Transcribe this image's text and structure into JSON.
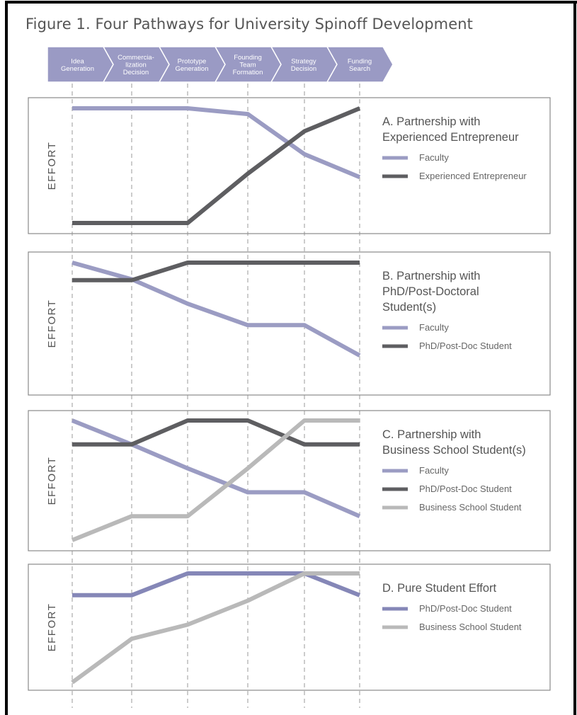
{
  "figure_title": "Figure 1. Four Pathways for University Spinoff Development",
  "colors": {
    "faculty": "#9b9cc3",
    "phd_dark": "#5e5e61",
    "entrepreneur_dark": "#5e5e61",
    "business_light": "#b9b9b9",
    "phd_in_d": "#8587b7",
    "stage_arrow_fill": "#9a9ac4",
    "panel_border": "#8a8a8a",
    "grid_dash": "#9a9a9a",
    "outer_border": "#000000"
  },
  "stages": [
    {
      "lines": [
        "Idea",
        "Generation"
      ]
    },
    {
      "lines": [
        "Commercia-",
        "lization",
        "Decision"
      ]
    },
    {
      "lines": [
        "Prototype",
        "Generation"
      ]
    },
    {
      "lines": [
        "Founding",
        "Team",
        "Formation"
      ]
    },
    {
      "lines": [
        "Strategy",
        "Decision"
      ]
    },
    {
      "lines": [
        "Funding",
        "Search"
      ]
    }
  ],
  "chart_data": [
    {
      "type": "line",
      "title_lines": [
        "A. Partnership with",
        "Experienced Entrepreneur"
      ],
      "ylabel": "EFFORT",
      "categories": [
        "Idea Generation",
        "Commercialization Decision",
        "Prototype Generation",
        "Founding Team Formation",
        "Strategy Decision",
        "Funding Search"
      ],
      "ylim": [
        0,
        10
      ],
      "series": [
        {
          "name": "Faculty",
          "color_key": "faculty",
          "values": [
            10,
            10,
            10,
            9.5,
            6.0,
            4.0
          ]
        },
        {
          "name": "Experienced Entrepreneur",
          "color_key": "entrepreneur_dark",
          "values": [
            0,
            0,
            0,
            4.3,
            8.0,
            10
          ]
        }
      ]
    },
    {
      "type": "line",
      "title_lines": [
        "B. Partnership with",
        "PhD/Post-Doctoral",
        "Student(s)"
      ],
      "ylabel": "EFFORT",
      "categories": [
        "Idea Generation",
        "Commercialization Decision",
        "Prototype Generation",
        "Founding Team Formation",
        "Strategy Decision",
        "Funding Search"
      ],
      "ylim": [
        0,
        10
      ],
      "series": [
        {
          "name": "Faculty",
          "color_key": "faculty",
          "values": [
            10,
            8.3,
            5.8,
            3.6,
            3.6,
            0.5
          ]
        },
        {
          "name": "PhD/Post-Doc Student",
          "color_key": "phd_dark",
          "values": [
            8.2,
            8.2,
            10,
            10,
            10,
            10
          ]
        }
      ]
    },
    {
      "type": "line",
      "title_lines": [
        "C. Partnership with",
        "Business School Student(s)"
      ],
      "ylabel": "EFFORT",
      "categories": [
        "Idea Generation",
        "Commercialization Decision",
        "Prototype Generation",
        "Founding Team Formation",
        "Strategy Decision",
        "Funding Search"
      ],
      "ylim": [
        0,
        10
      ],
      "series": [
        {
          "name": "Faculty",
          "color_key": "faculty",
          "values": [
            10,
            8.0,
            6.0,
            4.0,
            4.0,
            2.0
          ]
        },
        {
          "name": "PhD/Post-Doc Student",
          "color_key": "phd_dark",
          "values": [
            8.0,
            8.0,
            10,
            10,
            8.0,
            8.0
          ]
        },
        {
          "name": "Business School Student",
          "color_key": "business_light",
          "values": [
            0,
            2.0,
            2.0,
            6.0,
            10,
            10
          ]
        }
      ]
    },
    {
      "type": "line",
      "title_lines": [
        "D. Pure Student Effort"
      ],
      "ylabel": "EFFORT",
      "categories": [
        "Idea Generation",
        "Commercialization Decision",
        "Prototype Generation",
        "Founding Team Formation",
        "Strategy Decision",
        "Funding Search"
      ],
      "ylim": [
        0,
        10
      ],
      "series": [
        {
          "name": "PhD/Post-Doc Student",
          "color_key": "phd_in_d",
          "values": [
            8.0,
            8.0,
            10,
            10,
            10,
            8.0
          ]
        },
        {
          "name": "Business School Student",
          "color_key": "business_light",
          "values": [
            0,
            4.0,
            5.3,
            7.5,
            10,
            10
          ]
        }
      ]
    }
  ]
}
